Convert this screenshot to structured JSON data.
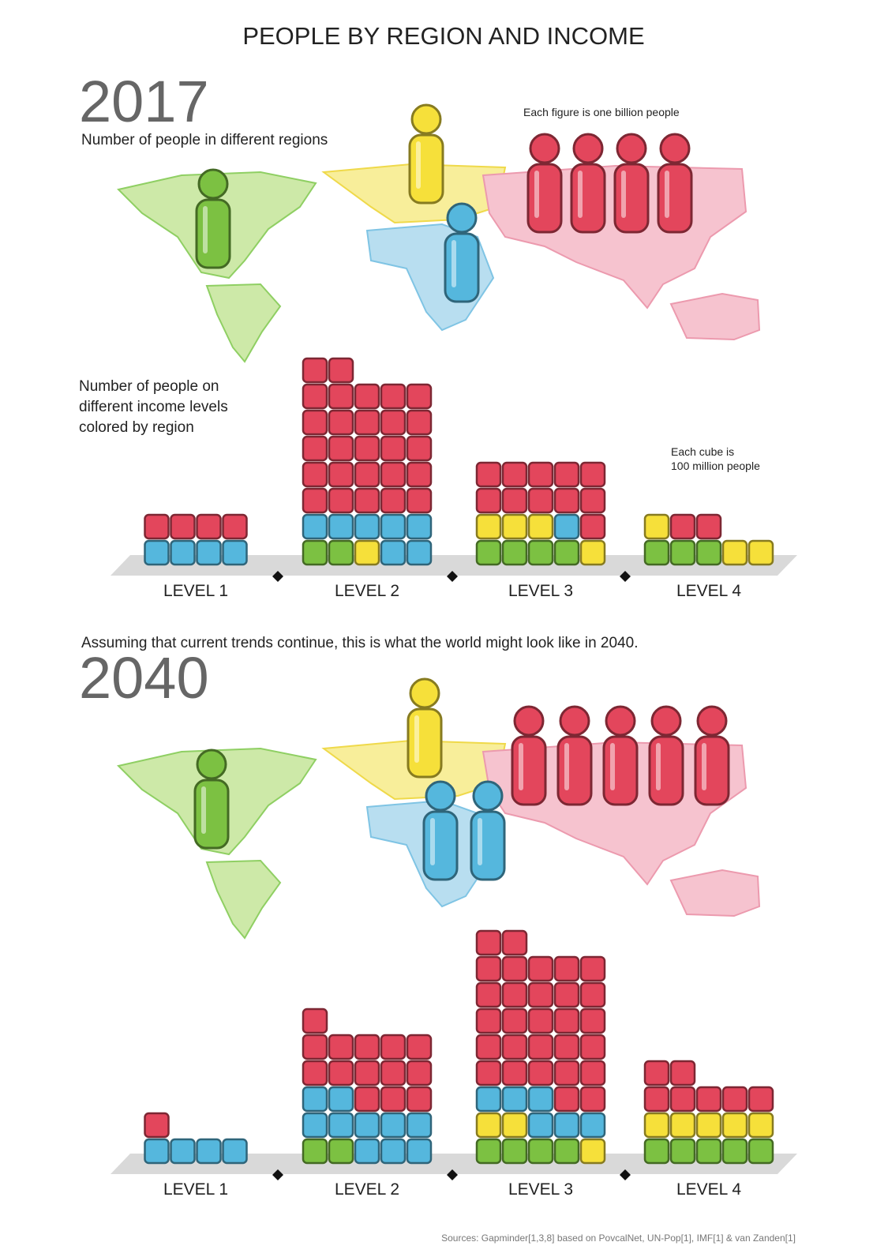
{
  "title": "PEOPLE BY REGION AND INCOME",
  "region_colors": [
    "#7cc142",
    "#f6e03a",
    "#55b7dd",
    "#e3465c"
  ],
  "panels": [
    {
      "year": "2017",
      "subtitle": "Number of people in different regions",
      "figure_note": "Each figure is one billion people",
      "income_note": [
        "Number of people on",
        "different income levels",
        "colored by region"
      ],
      "cube_note": [
        "Each cube is",
        "100 million people"
      ],
      "figures": [
        1,
        1,
        1,
        4
      ],
      "levels": [
        {
          "label": "LEVEL 1",
          "cubes": [
            0,
            0,
            4,
            4
          ]
        },
        {
          "label": "LEVEL 2",
          "cubes": [
            2,
            1,
            7,
            27
          ]
        },
        {
          "label": "LEVEL 3",
          "cubes": [
            4,
            4,
            1,
            11
          ]
        },
        {
          "label": "LEVEL 4",
          "cubes": [
            3,
            3,
            0,
            2
          ]
        }
      ]
    },
    {
      "intro": "Assuming that current trends continue, this is what the world might look like in 2040.",
      "year": "2040",
      "figures": [
        1,
        1,
        2,
        5
      ],
      "levels": [
        {
          "label": "LEVEL 1",
          "cubes": [
            0,
            0,
            4,
            1
          ]
        },
        {
          "label": "LEVEL 2",
          "cubes": [
            2,
            0,
            10,
            14
          ]
        },
        {
          "label": "LEVEL 3",
          "cubes": [
            4,
            3,
            6,
            29
          ]
        },
        {
          "label": "LEVEL 4",
          "cubes": [
            5,
            5,
            0,
            7
          ]
        }
      ]
    }
  ],
  "sources": "Sources: Gapminder[1,3,8] based on PovcalNet, UN-Pop[1], IMF[1] & van Zanden[1]"
}
